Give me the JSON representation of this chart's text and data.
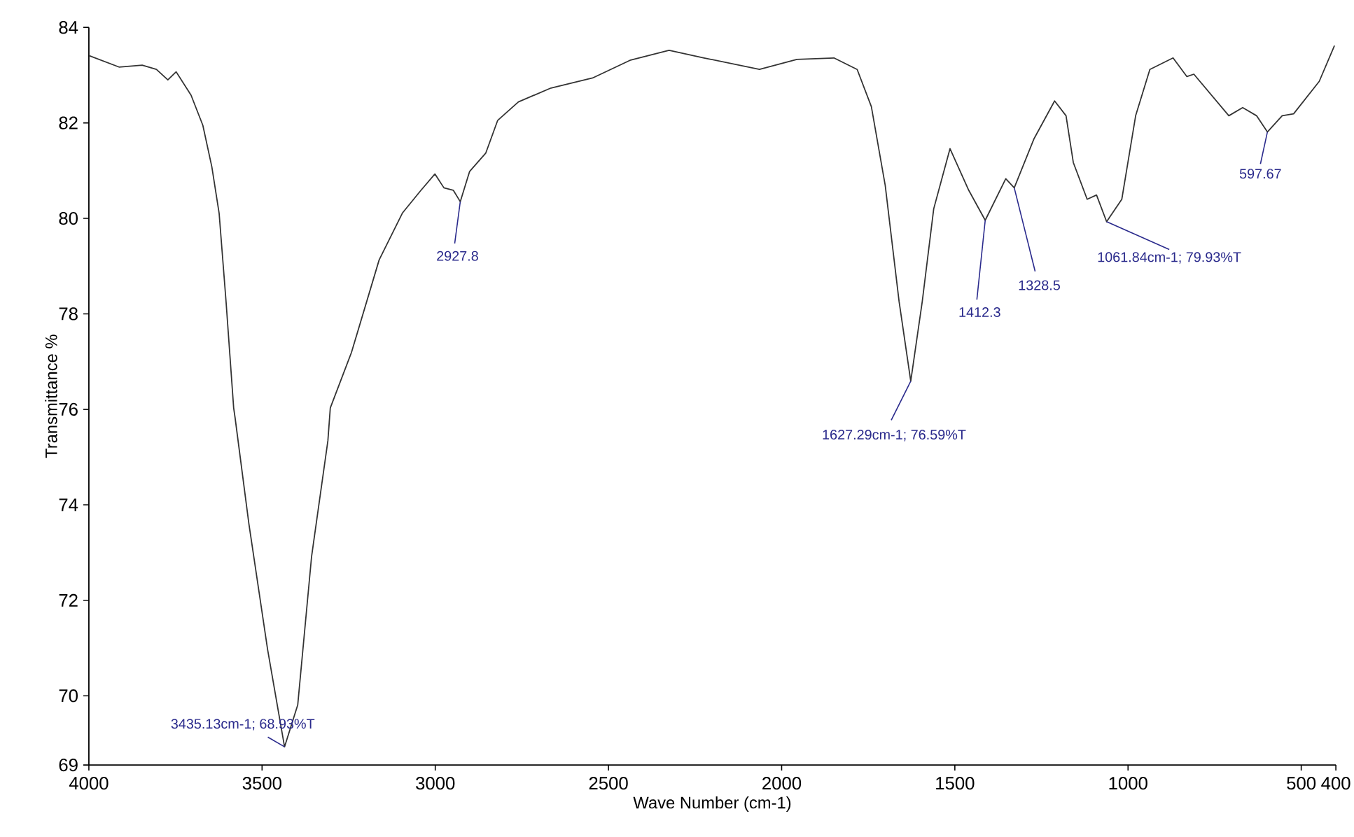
{
  "chart_data": {
    "type": "line",
    "xlabel": "Wave Number (cm-1)",
    "ylabel": "Transmittance %",
    "xlim": [
      4000,
      400
    ],
    "ylim": [
      68.55,
      84
    ],
    "xticks": [
      4000,
      3500,
      3000,
      2500,
      2000,
      1500,
      1000,
      500,
      400
    ],
    "yticks": [
      {
        "value": 68.55,
        "label": "69"
      },
      70,
      72,
      74,
      76,
      78,
      80,
      82,
      84
    ],
    "grid": false,
    "marker": "none",
    "line_style": "solid",
    "series": [
      {
        "color": "#333333",
        "x": [
          4000,
          3913,
          3846,
          3805,
          3772,
          3748,
          3705,
          3671,
          3645,
          3624,
          3604,
          3582,
          3578,
          3538,
          3484,
          3435.13,
          3397,
          3357,
          3310,
          3303,
          3242,
          3162,
          3095,
          3041,
          3001,
          2975,
          2948,
          2927.8,
          2901,
          2854,
          2820,
          2760,
          2666,
          2546,
          2438,
          2325,
          2224,
          2064,
          1956,
          1849,
          1782,
          1741,
          1701,
          1661,
          1627.29,
          1594,
          1561,
          1514,
          1460,
          1412.3,
          1353,
          1328.5,
          1272,
          1212,
          1179,
          1158,
          1118,
          1091,
          1061.84,
          1018,
          978,
          937,
          870,
          830,
          810,
          709,
          669,
          629,
          597.67,
          555,
          522,
          448,
          404
        ],
        "values": [
          83.41,
          83.17,
          83.21,
          83.12,
          82.9,
          83.07,
          82.58,
          81.95,
          81.08,
          80.11,
          78.26,
          76.03,
          75.83,
          73.6,
          70.97,
          68.93,
          69.81,
          72.92,
          75.34,
          76.03,
          77.19,
          79.13,
          80.11,
          80.59,
          80.93,
          80.64,
          80.59,
          80.35,
          80.98,
          81.37,
          82.05,
          82.44,
          82.73,
          82.94,
          83.31,
          83.52,
          83.36,
          83.12,
          83.33,
          83.36,
          83.12,
          82.34,
          80.69,
          78.26,
          76.59,
          78.26,
          80.2,
          81.46,
          80.59,
          79.96,
          80.83,
          80.64,
          81.66,
          82.46,
          82.15,
          81.17,
          80.4,
          80.49,
          79.93,
          80.4,
          82.15,
          83.12,
          83.36,
          82.97,
          83.02,
          82.15,
          82.32,
          82.15,
          81.81,
          82.15,
          82.19,
          82.87,
          83.62
        ]
      }
    ],
    "annotations": [
      {
        "text": "3435.13cm-1; 68.93%T",
        "x": 3435.13,
        "y": 68.93
      },
      {
        "text": "2927.8",
        "x": 2927.8,
        "y": 80.35
      },
      {
        "text": "1627.29cm-1; 76.59%T",
        "x": 1627.29,
        "y": 76.59
      },
      {
        "text": "1412.3",
        "x": 1412.3,
        "y": 79.96
      },
      {
        "text": "1328.5",
        "x": 1328.5,
        "y": 80.64
      },
      {
        "text": "1061.84cm-1; 79.93%T",
        "x": 1061.84,
        "y": 79.93
      },
      {
        "text": "597.67",
        "x": 597.67,
        "y": 81.81
      }
    ]
  }
}
